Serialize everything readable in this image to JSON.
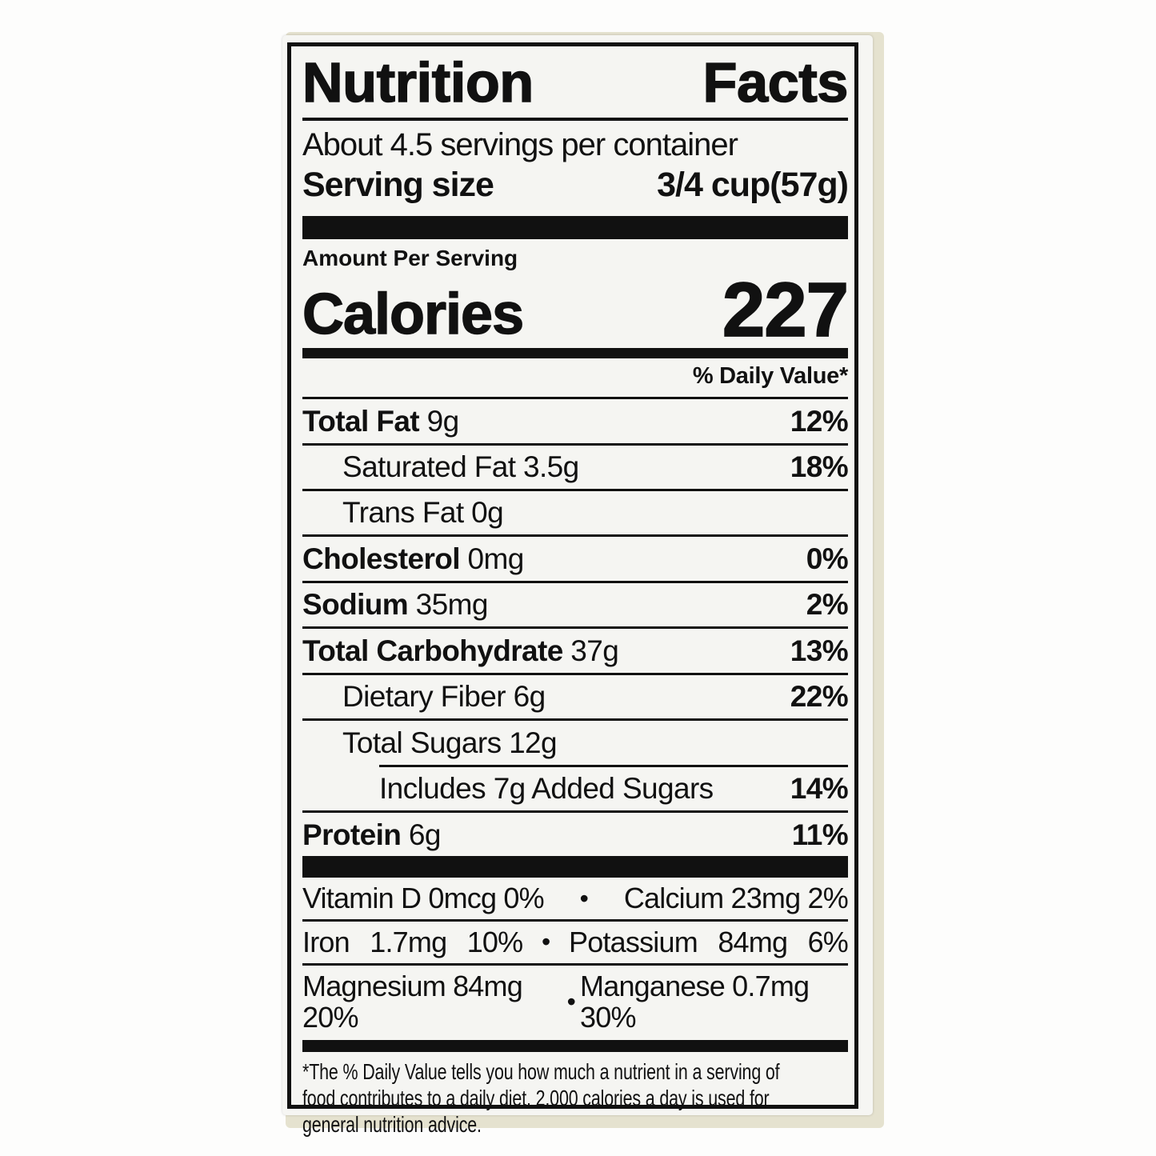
{
  "colors": {
    "ink": "#111111",
    "label_background": "#f5f5f2",
    "package_edge": "#e5e2cf",
    "page_background": "#fdfdfc"
  },
  "label": {
    "title": "Nutrition Facts",
    "servings_per_container": "About 4.5 servings per container",
    "serving_size_label": "Serving size",
    "serving_size_value": "3/4 cup(57g)",
    "amount_per_serving": "Amount Per Serving",
    "calories_label": "Calories",
    "calories_value": "227",
    "daily_value_header": "% Daily Value*",
    "nutrients": [
      {
        "name": "Total Fat",
        "amount": "9g",
        "dv": "12%"
      },
      {
        "name": "Saturated Fat",
        "amount": "3.5g",
        "dv": "18%"
      },
      {
        "name": "Trans Fat",
        "amount": "0g",
        "dv": ""
      },
      {
        "name": "Cholesterol",
        "amount": "0mg",
        "dv": "0%"
      },
      {
        "name": "Sodium",
        "amount": "35mg",
        "dv": "2%"
      },
      {
        "name": "Total Carbohydrate",
        "amount": "37g",
        "dv": "13%"
      },
      {
        "name": "Dietary Fiber",
        "amount": "6g",
        "dv": "22%"
      },
      {
        "name": "Total Sugars",
        "amount": "12g",
        "dv": ""
      },
      {
        "name": "Includes 7g Added Sugars",
        "amount": "",
        "dv": "14%"
      },
      {
        "name": "Protein",
        "amount": "6g",
        "dv": "11%"
      }
    ],
    "micronutrients": [
      {
        "left": "Vitamin D 0mcg 0%",
        "bullet": "•",
        "right": "Calcium 23mg 2%"
      },
      {
        "left": "Iron 1.7mg 10%",
        "bullet": "•",
        "right": "Potassium 84mg 6%"
      },
      {
        "left": "Magnesium 84mg 20%",
        "bullet": "•",
        "right": "Manganese 0.7mg 30%"
      }
    ],
    "footnote_lines": [
      "*The % Daily Value tells you how much a nutrient in a serving of",
      "food contributes to a daily diet. 2,000 calories a day is used for",
      "general nutrition advice."
    ]
  }
}
